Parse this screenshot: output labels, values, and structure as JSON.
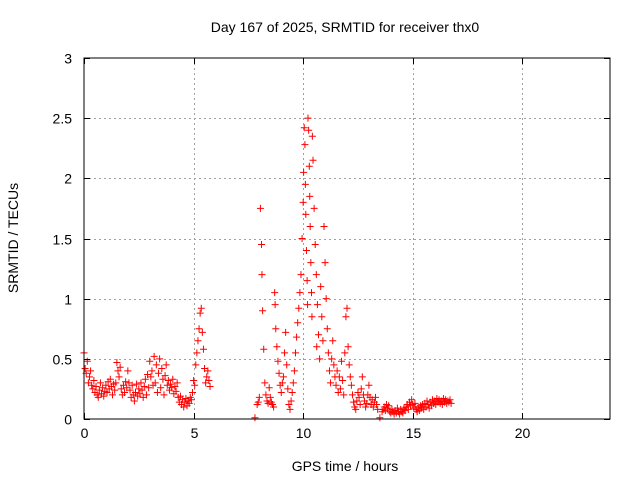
{
  "chart_data": {
    "type": "scatter",
    "title": "Day 167 of 2025, SRMTID for receiver thx0",
    "xlabel": "GPS time / hours",
    "ylabel": "SRMTID / TECUs",
    "xlim": [
      0,
      24
    ],
    "ylim": [
      0,
      3
    ],
    "xticks": [
      0,
      5,
      10,
      15,
      20
    ],
    "yticks": [
      0,
      0.5,
      1,
      1.5,
      2,
      2.5,
      3
    ],
    "ytick_labels": [
      "0",
      "0.5",
      "1",
      "1.5",
      "2",
      "2.5",
      "3"
    ],
    "grid": true,
    "marker": "plus",
    "series": [
      {
        "name": "thx0",
        "color": "#ff0000",
        "points": [
          [
            0.0,
            0.55
          ],
          [
            0.05,
            0.42
          ],
          [
            0.1,
            0.38
          ],
          [
            0.15,
            0.48
          ],
          [
            0.2,
            0.3
          ],
          [
            0.25,
            0.35
          ],
          [
            0.3,
            0.4
          ],
          [
            0.35,
            0.28
          ],
          [
            0.4,
            0.25
          ],
          [
            0.45,
            0.32
          ],
          [
            0.5,
            0.22
          ],
          [
            0.55,
            0.27
          ],
          [
            0.6,
            0.2
          ],
          [
            0.65,
            0.18
          ],
          [
            0.7,
            0.24
          ],
          [
            0.75,
            0.3
          ],
          [
            0.8,
            0.21
          ],
          [
            0.85,
            0.26
          ],
          [
            0.9,
            0.19
          ],
          [
            0.95,
            0.23
          ],
          [
            1.0,
            0.28
          ],
          [
            1.05,
            0.22
          ],
          [
            1.1,
            0.31
          ],
          [
            1.15,
            0.25
          ],
          [
            1.2,
            0.33
          ],
          [
            1.25,
            0.27
          ],
          [
            1.3,
            0.2
          ],
          [
            1.35,
            0.29
          ],
          [
            1.4,
            0.24
          ],
          [
            1.45,
            0.3
          ],
          [
            1.5,
            0.47
          ],
          [
            1.55,
            0.4
          ],
          [
            1.6,
            0.35
          ],
          [
            1.65,
            0.43
          ],
          [
            1.7,
            0.25
          ],
          [
            1.75,
            0.2
          ],
          [
            1.8,
            0.28
          ],
          [
            1.85,
            0.22
          ],
          [
            1.9,
            0.31
          ],
          [
            1.95,
            0.26
          ],
          [
            2.0,
            0.4
          ],
          [
            2.05,
            0.3
          ],
          [
            2.1,
            0.24
          ],
          [
            2.15,
            0.18
          ],
          [
            2.2,
            0.28
          ],
          [
            2.25,
            0.2
          ],
          [
            2.3,
            0.15
          ],
          [
            2.35,
            0.22
          ],
          [
            2.4,
            0.29
          ],
          [
            2.45,
            0.19
          ],
          [
            2.5,
            0.25
          ],
          [
            2.55,
            0.21
          ],
          [
            2.6,
            0.3
          ],
          [
            2.65,
            0.24
          ],
          [
            2.7,
            0.18
          ],
          [
            2.75,
            0.27
          ],
          [
            2.8,
            0.33
          ],
          [
            2.85,
            0.2
          ],
          [
            2.9,
            0.37
          ],
          [
            2.95,
            0.26
          ],
          [
            3.0,
            0.48
          ],
          [
            3.05,
            0.35
          ],
          [
            3.1,
            0.4
          ],
          [
            3.15,
            0.28
          ],
          [
            3.2,
            0.52
          ],
          [
            3.25,
            0.3
          ],
          [
            3.3,
            0.45
          ],
          [
            3.35,
            0.22
          ],
          [
            3.4,
            0.38
          ],
          [
            3.45,
            0.5
          ],
          [
            3.5,
            0.26
          ],
          [
            3.55,
            0.42
          ],
          [
            3.6,
            0.33
          ],
          [
            3.65,
            0.2
          ],
          [
            3.7,
            0.36
          ],
          [
            3.75,
            0.45
          ],
          [
            3.8,
            0.28
          ],
          [
            3.85,
            0.32
          ],
          [
            3.9,
            0.24
          ],
          [
            3.95,
            0.29
          ],
          [
            4.0,
            0.26
          ],
          [
            4.05,
            0.33
          ],
          [
            4.1,
            0.21
          ],
          [
            4.15,
            0.27
          ],
          [
            4.2,
            0.23
          ],
          [
            4.25,
            0.3
          ],
          [
            4.3,
            0.18
          ],
          [
            4.35,
            0.14
          ],
          [
            4.4,
            0.19
          ],
          [
            4.45,
            0.12
          ],
          [
            4.5,
            0.16
          ],
          [
            4.55,
            0.1
          ],
          [
            4.6,
            0.14
          ],
          [
            4.65,
            0.17
          ],
          [
            4.7,
            0.11
          ],
          [
            4.75,
            0.15
          ],
          [
            4.8,
            0.13
          ],
          [
            4.85,
            0.18
          ],
          [
            4.9,
            0.16
          ],
          [
            4.95,
            0.22
          ],
          [
            5.0,
            0.32
          ],
          [
            5.05,
            0.28
          ],
          [
            5.1,
            0.45
          ],
          [
            5.15,
            0.55
          ],
          [
            5.2,
            0.65
          ],
          [
            5.25,
            0.75
          ],
          [
            5.3,
            0.88
          ],
          [
            5.35,
            0.92
          ],
          [
            5.4,
            0.72
          ],
          [
            5.45,
            0.58
          ],
          [
            5.5,
            0.42
          ],
          [
            5.55,
            0.3
          ],
          [
            5.6,
            0.35
          ],
          [
            5.65,
            0.4
          ],
          [
            5.7,
            0.32
          ],
          [
            5.75,
            0.27
          ],
          [
            7.8,
            0.01
          ],
          [
            7.9,
            0.12
          ],
          [
            7.95,
            0.14
          ],
          [
            8.0,
            0.18
          ],
          [
            8.05,
            1.75
          ],
          [
            8.1,
            1.45
          ],
          [
            8.12,
            1.2
          ],
          [
            8.15,
            0.9
          ],
          [
            8.2,
            0.58
          ],
          [
            8.25,
            0.3
          ],
          [
            8.3,
            0.2
          ],
          [
            8.35,
            0.15
          ],
          [
            8.4,
            0.13
          ],
          [
            8.45,
            0.26
          ],
          [
            8.5,
            0.18
          ],
          [
            8.55,
            0.14
          ],
          [
            8.6,
            0.12
          ],
          [
            8.65,
            0.1
          ],
          [
            8.7,
            1.05
          ],
          [
            8.72,
            0.95
          ],
          [
            8.75,
            0.75
          ],
          [
            8.8,
            0.6
          ],
          [
            8.85,
            0.48
          ],
          [
            8.9,
            0.38
          ],
          [
            8.95,
            0.28
          ],
          [
            9.0,
            0.22
          ],
          [
            9.05,
            0.3
          ],
          [
            9.1,
            0.35
          ],
          [
            9.15,
            0.55
          ],
          [
            9.2,
            0.72
          ],
          [
            9.25,
            0.45
          ],
          [
            9.3,
            0.25
          ],
          [
            9.35,
            0.12
          ],
          [
            9.4,
            0.08
          ],
          [
            9.45,
            0.15
          ],
          [
            9.5,
            0.22
          ],
          [
            9.55,
            0.3
          ],
          [
            9.6,
            0.4
          ],
          [
            9.65,
            0.55
          ],
          [
            9.7,
            0.68
          ],
          [
            9.75,
            0.8
          ],
          [
            9.8,
            0.92
          ],
          [
            9.85,
            1.05
          ],
          [
            9.9,
            1.2
          ],
          [
            9.95,
            1.5
          ],
          [
            10.0,
            1.8
          ],
          [
            10.02,
            2.05
          ],
          [
            10.05,
            2.42
          ],
          [
            10.08,
            2.28
          ],
          [
            10.1,
            1.95
          ],
          [
            10.12,
            1.7
          ],
          [
            10.15,
            1.4
          ],
          [
            10.18,
            1.15
          ],
          [
            10.2,
            0.95
          ],
          [
            10.22,
            2.5
          ],
          [
            10.25,
            2.4
          ],
          [
            10.28,
            2.1
          ],
          [
            10.3,
            1.85
          ],
          [
            10.32,
            1.6
          ],
          [
            10.35,
            1.3
          ],
          [
            10.38,
            1.05
          ],
          [
            10.4,
            0.85
          ],
          [
            10.42,
            2.35
          ],
          [
            10.45,
            2.15
          ],
          [
            10.5,
            1.75
          ],
          [
            10.55,
            1.45
          ],
          [
            10.6,
            1.2
          ],
          [
            10.62,
            0.6
          ],
          [
            10.65,
            0.95
          ],
          [
            10.7,
            0.7
          ],
          [
            10.75,
            0.5
          ],
          [
            10.8,
            1.1
          ],
          [
            10.85,
            0.85
          ],
          [
            10.9,
            0.65
          ],
          [
            10.95,
            1.6
          ],
          [
            11.0,
            1.3
          ],
          [
            11.05,
            1.0
          ],
          [
            11.1,
            0.75
          ],
          [
            11.15,
            0.55
          ],
          [
            11.2,
            0.4
          ],
          [
            11.25,
            0.3
          ],
          [
            11.3,
            0.5
          ],
          [
            11.35,
            0.65
          ],
          [
            11.4,
            0.45
          ],
          [
            11.45,
            0.35
          ],
          [
            11.5,
            0.28
          ],
          [
            11.55,
            0.4
          ],
          [
            11.6,
            0.22
          ],
          [
            11.65,
            0.35
          ],
          [
            11.7,
            0.25
          ],
          [
            11.75,
            0.48
          ],
          [
            11.8,
            0.32
          ],
          [
            11.85,
            0.2
          ],
          [
            11.9,
            0.55
          ],
          [
            11.95,
            0.85
          ],
          [
            12.0,
            0.92
          ],
          [
            12.05,
            0.6
          ],
          [
            12.1,
            0.45
          ],
          [
            12.15,
            0.35
          ],
          [
            12.2,
            0.28
          ],
          [
            12.25,
            0.2
          ],
          [
            12.3,
            0.14
          ],
          [
            12.35,
            0.1
          ],
          [
            12.4,
            0.08
          ],
          [
            12.45,
            0.15
          ],
          [
            12.5,
            0.22
          ],
          [
            12.55,
            0.18
          ],
          [
            12.6,
            0.12
          ],
          [
            12.65,
            0.25
          ],
          [
            12.7,
            0.35
          ],
          [
            12.75,
            0.2
          ],
          [
            12.8,
            0.15
          ],
          [
            12.85,
            0.1
          ],
          [
            12.9,
            0.13
          ],
          [
            12.95,
            0.2
          ],
          [
            13.0,
            0.28
          ],
          [
            13.05,
            0.18
          ],
          [
            13.1,
            0.12
          ],
          [
            13.15,
            0.16
          ],
          [
            13.2,
            0.1
          ],
          [
            13.25,
            0.14
          ],
          [
            13.3,
            0.18
          ],
          [
            13.35,
            0.12
          ],
          [
            13.4,
            0.08
          ],
          [
            13.5,
            0.01
          ],
          [
            13.6,
            0.06
          ],
          [
            13.65,
            0.08
          ],
          [
            13.7,
            0.1
          ],
          [
            13.75,
            0.07
          ],
          [
            13.8,
            0.12
          ],
          [
            13.85,
            0.09
          ],
          [
            13.9,
            0.11
          ],
          [
            13.95,
            0.06
          ],
          [
            14.0,
            0.05
          ],
          [
            14.05,
            0.08
          ],
          [
            14.1,
            0.06
          ],
          [
            14.15,
            0.04
          ],
          [
            14.2,
            0.07
          ],
          [
            14.25,
            0.05
          ],
          [
            14.3,
            0.09
          ],
          [
            14.35,
            0.06
          ],
          [
            14.4,
            0.04
          ],
          [
            14.45,
            0.08
          ],
          [
            14.5,
            0.06
          ],
          [
            14.55,
            0.05
          ],
          [
            14.6,
            0.09
          ],
          [
            14.65,
            0.07
          ],
          [
            14.7,
            0.1
          ],
          [
            14.75,
            0.12
          ],
          [
            14.8,
            0.08
          ],
          [
            14.85,
            0.14
          ],
          [
            14.9,
            0.11
          ],
          [
            14.95,
            0.16
          ],
          [
            15.0,
            0.12
          ],
          [
            15.05,
            0.09
          ],
          [
            15.1,
            0.13
          ],
          [
            15.15,
            0.08
          ],
          [
            15.2,
            0.06
          ],
          [
            15.25,
            0.1
          ],
          [
            15.3,
            0.07
          ],
          [
            15.35,
            0.11
          ],
          [
            15.4,
            0.09
          ],
          [
            15.45,
            0.12
          ],
          [
            15.5,
            0.08
          ],
          [
            15.55,
            0.13
          ],
          [
            15.6,
            0.1
          ],
          [
            15.65,
            0.15
          ],
          [
            15.7,
            0.12
          ],
          [
            15.75,
            0.09
          ],
          [
            15.8,
            0.14
          ],
          [
            15.85,
            0.11
          ],
          [
            15.9,
            0.16
          ],
          [
            15.95,
            0.13
          ],
          [
            16.0,
            0.15
          ],
          [
            16.05,
            0.12
          ],
          [
            16.1,
            0.17
          ],
          [
            16.15,
            0.14
          ],
          [
            16.2,
            0.16
          ],
          [
            16.25,
            0.13
          ],
          [
            16.3,
            0.15
          ],
          [
            16.35,
            0.12
          ],
          [
            16.4,
            0.17
          ],
          [
            16.45,
            0.14
          ],
          [
            16.5,
            0.16
          ],
          [
            16.55,
            0.13
          ],
          [
            16.6,
            0.15
          ],
          [
            16.65,
            0.14
          ],
          [
            16.7,
            0.16
          ],
          [
            16.75,
            0.13
          ]
        ]
      }
    ]
  }
}
